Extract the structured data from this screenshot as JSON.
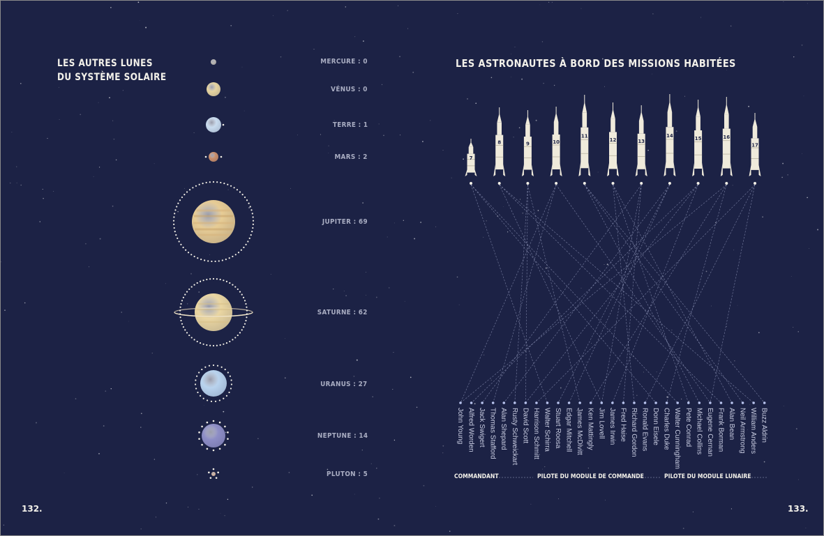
{
  "left_page": {
    "title_line1": "LES AUTRES LUNES",
    "title_line2": "DU SYSTÈME SOLAIRE",
    "page_number": "132.",
    "planets": [
      {
        "name": "Mercure",
        "label": "MERCURE : 0",
        "moons": 0,
        "color": "#b9b6b2"
      },
      {
        "name": "Vénus",
        "label": "VÉNUS : 0",
        "moons": 0,
        "color": "#e6d4a0"
      },
      {
        "name": "Terre",
        "label": "TERRE : 1",
        "moons": 1,
        "color": "#c9dcef"
      },
      {
        "name": "Mars",
        "label": "MARS : 2",
        "moons": 2,
        "color": "#c98d6a"
      },
      {
        "name": "Jupiter",
        "label": "JUPITER : 69",
        "moons": 69,
        "color": "#e7cc95"
      },
      {
        "name": "Saturne",
        "label": "SATURNE : 62",
        "moons": 62,
        "color": "#ead6a2"
      },
      {
        "name": "Uranus",
        "label": "URANUS : 27",
        "moons": 27,
        "color": "#b9d3ee"
      },
      {
        "name": "Neptune",
        "label": "NEPTUNE : 14",
        "moons": 14,
        "color": "#8e8ec6"
      },
      {
        "name": "Pluton",
        "label": "PLUTON : 5",
        "moons": 5,
        "color": "#d7b7a2"
      }
    ]
  },
  "right_page": {
    "title": "LES ASTRONAUTES À BORD DES MISSIONS HABITÉES",
    "page_number": "133.",
    "missions": [
      "7",
      "8",
      "9",
      "10",
      "11",
      "12",
      "13",
      "14",
      "15",
      "16",
      "17"
    ],
    "astronauts": [
      "John Young",
      "Alfred Worden",
      "Jack Swigert",
      "Thomas Stafford",
      "Alan Shepard",
      "Rusty Schweickart",
      "David Scott",
      "Harrison Schmitt",
      "Walter Schirra",
      "Stuart Roosa",
      "Edgar Mitchell",
      "James McDivitt",
      "Ken Mattingly",
      "Jim Lovell",
      "James Irwin",
      "Fred Haise",
      "Richard Gordon",
      "Ronald Evans",
      "Donn Eisele",
      "Charles Duke",
      "Walter Cunningham",
      "Pete Conrad",
      "Michael Collins",
      "Eugene Cernan",
      "Frank Borman",
      "Alan Bean",
      "Neil Armstrong",
      "William Anders",
      "Buzz Aldrin"
    ],
    "crews": [
      {
        "mission": "7",
        "members": [
          "Walter Schirra",
          "Donn Eisele",
          "Walter Cunningham"
        ]
      },
      {
        "mission": "8",
        "members": [
          "Frank Borman",
          "Jim Lovell",
          "William Anders"
        ]
      },
      {
        "mission": "9",
        "members": [
          "James McDivitt",
          "David Scott",
          "Rusty Schweickart"
        ]
      },
      {
        "mission": "10",
        "members": [
          "Thomas Stafford",
          "John Young",
          "Eugene Cernan"
        ]
      },
      {
        "mission": "11",
        "members": [
          "Neil Armstrong",
          "Michael Collins",
          "Buzz Aldrin"
        ]
      },
      {
        "mission": "12",
        "members": [
          "Pete Conrad",
          "Richard Gordon",
          "Alan Bean"
        ]
      },
      {
        "mission": "13",
        "members": [
          "Jim Lovell",
          "Jack Swigert",
          "Fred Haise"
        ]
      },
      {
        "mission": "14",
        "members": [
          "Alan Shepard",
          "Stuart Roosa",
          "Edgar Mitchell"
        ]
      },
      {
        "mission": "15",
        "members": [
          "David Scott",
          "Alfred Worden",
          "James Irwin"
        ]
      },
      {
        "mission": "16",
        "members": [
          "John Young",
          "Ken Mattingly",
          "Charles Duke"
        ]
      },
      {
        "mission": "17",
        "members": [
          "Eugene Cernan",
          "Ronald Evans",
          "Harrison Schmitt"
        ]
      }
    ],
    "legend": {
      "commander": "COMMANDANT",
      "command_module_pilot": "PILOTE DU MODULE DE COMMANDE",
      "lunar_module_pilot": "PILOTE DU MODULE LUNAIRE"
    }
  },
  "colors": {
    "background": "#1c2245",
    "title": "#f3f1ea",
    "label": "#a9adc2",
    "line": "#9aa1c4",
    "rocket": "#efeadb"
  }
}
